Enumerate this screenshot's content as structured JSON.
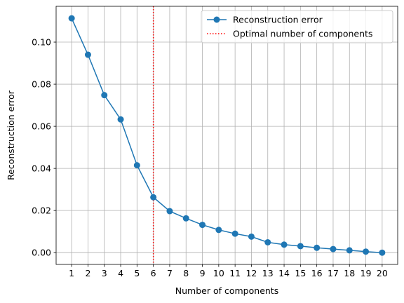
{
  "chart_data": {
    "type": "line",
    "title": "",
    "xlabel": "Number of components",
    "ylabel": "Reconstruction error",
    "x": [
      1,
      2,
      3,
      4,
      5,
      6,
      7,
      8,
      9,
      10,
      11,
      12,
      13,
      14,
      15,
      16,
      17,
      18,
      19,
      20
    ],
    "series": [
      {
        "name": "Reconstruction error",
        "color": "#1f77b4",
        "marker": "circle",
        "values": [
          0.1113,
          0.094,
          0.0748,
          0.0633,
          0.0415,
          0.0263,
          0.0197,
          0.0163,
          0.0132,
          0.0108,
          0.009,
          0.0076,
          0.0049,
          0.0038,
          0.0031,
          0.0023,
          0.0017,
          0.0011,
          0.0005,
          0.0
        ]
      }
    ],
    "vline": {
      "name": "Optimal number of components",
      "x": 6,
      "color": "#ff0000",
      "style": "dotted"
    },
    "xticks": [
      "1",
      "2",
      "3",
      "4",
      "5",
      "6",
      "7",
      "8",
      "9",
      "10",
      "11",
      "12",
      "13",
      "14",
      "15",
      "16",
      "17",
      "18",
      "19",
      "20"
    ],
    "yticks": [
      {
        "value": 0.0,
        "label": "0.00"
      },
      {
        "value": 0.02,
        "label": "0.02"
      },
      {
        "value": 0.04,
        "label": "0.04"
      },
      {
        "value": 0.06,
        "label": "0.06"
      },
      {
        "value": 0.08,
        "label": "0.08"
      },
      {
        "value": 0.1,
        "label": "0.10"
      }
    ],
    "xlim": [
      0.05,
      20.95
    ],
    "ylim": [
      -0.0056,
      0.117
    ],
    "grid": true,
    "legend_position": "top-right"
  }
}
